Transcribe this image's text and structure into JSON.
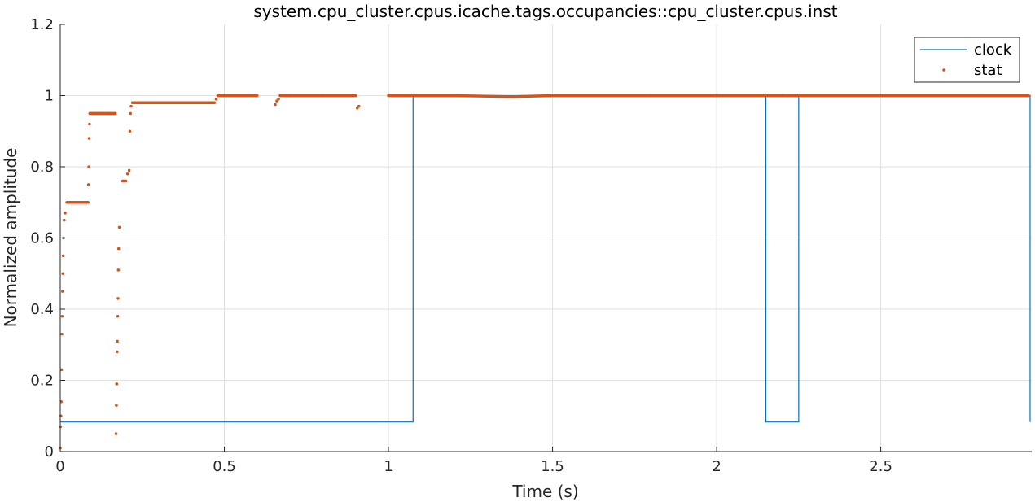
{
  "chart_data": {
    "type": "line",
    "title": "system.cpu_cluster.cpus.icache.tags.occupancies::cpu_cluster.cpus.inst",
    "xlabel": "Time (s)",
    "ylabel": "Normalized amplitude",
    "xlim": [
      0,
      2.96
    ],
    "ylim": [
      0,
      1.2
    ],
    "xticks": [
      0,
      0.5,
      1,
      1.5,
      2,
      2.5
    ],
    "xtick_labels": [
      "0",
      "0.5",
      "1",
      "1.5",
      "2",
      "2.5"
    ],
    "yticks": [
      0,
      0.2,
      0.4,
      0.6,
      0.8,
      1,
      1.2
    ],
    "ytick_labels": [
      "0",
      "0.2",
      "0.4",
      "0.6",
      "0.8",
      "1",
      "1.2"
    ],
    "grid": true,
    "legend_position": "top-right",
    "colors": {
      "clock": "#0072BD",
      "stat": "#D95319"
    },
    "series": [
      {
        "name": "clock",
        "kind": "step-line",
        "x": [
          0,
          1.075,
          1.075,
          2.15,
          2.15,
          2.25,
          2.25,
          2.955,
          2.955
        ],
        "y": [
          0.083,
          0.083,
          1.0,
          1.0,
          0.083,
          0.083,
          1.0,
          1.0,
          0.083
        ]
      },
      {
        "name": "stat",
        "kind": "dots",
        "x": [
          0.0,
          0.001,
          0.002,
          0.003,
          0.004,
          0.005,
          0.006,
          0.007,
          0.008,
          0.009,
          0.01,
          0.012,
          0.015,
          0.02,
          0.03,
          0.05,
          0.07,
          0.085,
          0.086,
          0.087,
          0.088,
          0.089,
          0.09,
          0.1,
          0.12,
          0.15,
          0.168,
          0.17,
          0.171,
          0.172,
          0.173,
          0.174,
          0.175,
          0.176,
          0.177,
          0.178,
          0.18,
          0.19,
          0.2,
          0.205,
          0.21,
          0.212,
          0.214,
          0.216,
          0.22,
          0.25,
          0.3,
          0.35,
          0.4,
          0.45,
          0.47,
          0.475,
          0.48,
          0.5,
          0.6,
          0.655,
          0.66,
          0.665,
          0.67,
          0.7,
          0.8,
          0.9,
          0.905,
          0.91,
          1.0,
          1.2,
          1.38,
          1.5,
          1.8,
          2.0,
          2.2,
          2.5,
          2.8,
          2.95
        ],
        "y": [
          0.01,
          0.07,
          0.1,
          0.14,
          0.23,
          0.33,
          0.38,
          0.45,
          0.5,
          0.55,
          0.6,
          0.65,
          0.67,
          0.7,
          0.7,
          0.7,
          0.7,
          0.7,
          0.75,
          0.8,
          0.88,
          0.92,
          0.95,
          0.95,
          0.95,
          0.95,
          0.95,
          0.05,
          0.13,
          0.19,
          0.28,
          0.31,
          0.38,
          0.43,
          0.51,
          0.57,
          0.63,
          0.76,
          0.76,
          0.78,
          0.79,
          0.9,
          0.95,
          0.97,
          0.98,
          0.98,
          0.98,
          0.98,
          0.98,
          0.98,
          0.98,
          0.99,
          1.0,
          1.0,
          1.0,
          0.975,
          0.985,
          0.99,
          1.0,
          1.0,
          1.0,
          1.0,
          0.965,
          0.97,
          1.0,
          1.0,
          0.997,
          1.0,
          1.0,
          1.0,
          1.0,
          1.0,
          1.0,
          1.0
        ]
      }
    ]
  }
}
